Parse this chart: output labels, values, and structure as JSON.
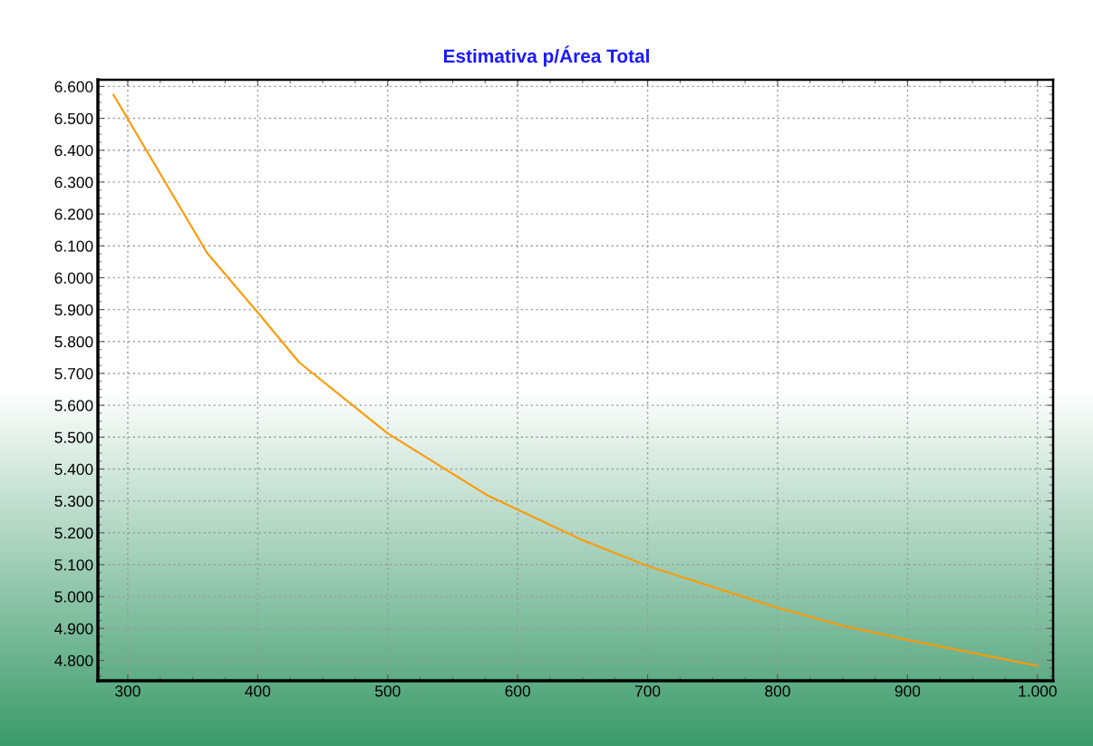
{
  "chart_data": {
    "type": "line",
    "title": "Estimativa p/Área Total",
    "x": [
      289,
      361,
      400,
      432,
      500,
      576,
      651,
      700,
      800,
      850,
      900,
      1000
    ],
    "series": [
      {
        "color": "#ff9900",
        "values": [
          6574,
          6078,
          5891,
          5734,
          5512,
          5319,
          5175,
          5096,
          4965,
          4909,
          4864,
          4783
        ]
      }
    ],
    "xlim": [
      277,
      1012
    ],
    "ylim": [
      4736,
      6621
    ],
    "xticks": [
      300,
      400,
      500,
      600,
      700,
      800,
      900,
      {
        "value": 1000,
        "label": "1.000"
      }
    ],
    "yticks": [
      {
        "value": 4800,
        "label": "4.800"
      },
      {
        "value": 4900,
        "label": "4.900"
      },
      {
        "value": 5000,
        "label": "5.000"
      },
      {
        "value": 5100,
        "label": "5.100"
      },
      {
        "value": 5200,
        "label": "5.200"
      },
      {
        "value": 5300,
        "label": "5.300"
      },
      {
        "value": 5400,
        "label": "5.400"
      },
      {
        "value": 5500,
        "label": "5.500"
      },
      {
        "value": 5600,
        "label": "5.600"
      },
      {
        "value": 5700,
        "label": "5.700"
      },
      {
        "value": 5800,
        "label": "5.800"
      },
      {
        "value": 5900,
        "label": "5.900"
      },
      {
        "value": 6000,
        "label": "6.000"
      },
      {
        "value": 6100,
        "label": "6.100"
      },
      {
        "value": 6200,
        "label": "6.200"
      },
      {
        "value": 6300,
        "label": "6.300"
      },
      {
        "value": 6400,
        "label": "6.400"
      },
      {
        "value": 6500,
        "label": "6.500"
      },
      {
        "value": 6600,
        "label": "6.600"
      }
    ],
    "grid": true,
    "marker": "none",
    "line_style": "solid"
  }
}
